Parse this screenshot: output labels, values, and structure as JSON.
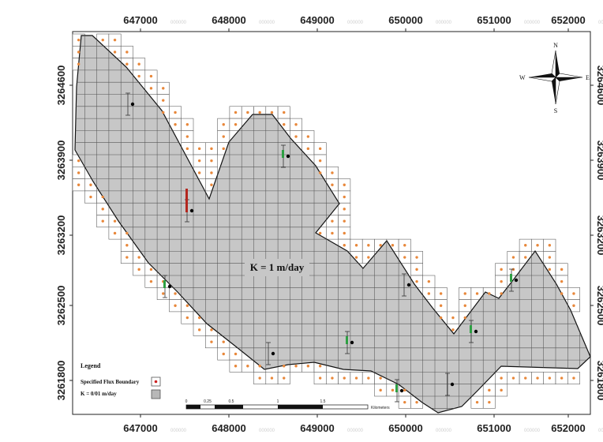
{
  "map": {
    "x_ticks_top": [
      "647000",
      "648000",
      "649000",
      "650000",
      "651000",
      "652000"
    ],
    "x_ticks_bottom": [
      "647000",
      "648000",
      "649000",
      "650000",
      "651000",
      "652000"
    ],
    "x_tick_watermark": "000000",
    "y_ticks_left": [
      "3264600",
      "3263900",
      "3263200",
      "3262500",
      "3261800"
    ],
    "y_ticks_right": [
      "3264600",
      "3263900",
      "3263200",
      "3262500",
      "3261800"
    ],
    "zone_label": "K = 1 m/day",
    "colors": {
      "model_fill": "#c7c7c7",
      "grid_line": "#555555",
      "boundary_point": "#e8873a",
      "well_dot": "#000000",
      "head_bar_green": "#2ea043",
      "head_bar_red": "#b3261e"
    }
  },
  "legend": {
    "title": "Legend",
    "items": [
      {
        "label": "Specified Flux Boundary",
        "symbol": "flux-boundary-symbol"
      },
      {
        "label": "K = 0/01 m/day",
        "symbol": "low-k-symbol"
      }
    ]
  },
  "compass": {
    "n": "N",
    "s": "S",
    "e": "E",
    "w": "W"
  },
  "scale_bar": {
    "ticks": [
      "0",
      "0.25",
      "0.5",
      "1",
      "1.5"
    ],
    "unit": "Kilometers"
  }
}
